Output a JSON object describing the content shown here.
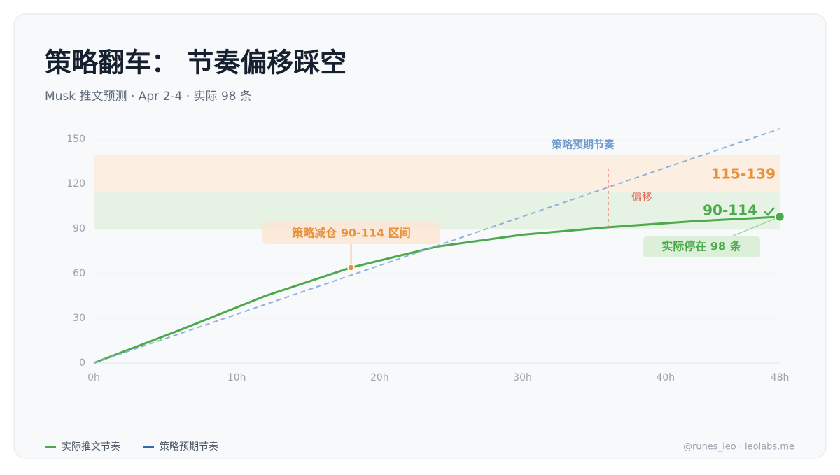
{
  "chart_data": {
    "type": "line",
    "title": "策略翻车： 节奏偏移踩空",
    "subtitle": "Musk 推文预测 · Apr 2-4 · 实际 98 条",
    "xlim": [
      0,
      48
    ],
    "xticks": [
      {
        "value": 0,
        "label": "0h"
      },
      {
        "value": 10,
        "label": "10h"
      },
      {
        "value": 20,
        "label": "20h"
      },
      {
        "value": 30,
        "label": "30h"
      },
      {
        "value": 40,
        "label": "40h"
      },
      {
        "value": 48,
        "label": "48h"
      }
    ],
    "ylim": [
      0,
      157
    ],
    "yticks": [
      0,
      30,
      60,
      90,
      120,
      150
    ],
    "grid": true,
    "series": [
      {
        "name": "实际推文节奏",
        "color": "#4caa4c",
        "dashed": false,
        "x": [
          0,
          6,
          12,
          18,
          24,
          30,
          36,
          42,
          48
        ],
        "values": [
          0,
          22,
          45,
          64,
          78,
          86,
          91,
          95,
          98
        ]
      },
      {
        "name": "策略预期节奏",
        "color": "#8db1d8",
        "legend_color": "#2f69a8",
        "dashed": true,
        "x": [
          0,
          48
        ],
        "values": [
          0,
          157
        ]
      }
    ],
    "bands": [
      {
        "label": "115-139",
        "from": 115,
        "to": 139,
        "color": "#fdeee2",
        "text_color": "#e8913a"
      },
      {
        "label": "90-114",
        "from": 90,
        "to": 114,
        "color": "#e6f3e4",
        "text_color": "#4caa4c"
      }
    ],
    "annotations": {
      "expected_label": "策略预期节奏",
      "reduce_label": "策略减仓 90-114 区间",
      "offset": {
        "label": "偏移",
        "x": 36,
        "from": 91,
        "to": 132
      },
      "end_label": "实际停在 98 条"
    },
    "footer": "@runes_leo · leolabs.me"
  }
}
